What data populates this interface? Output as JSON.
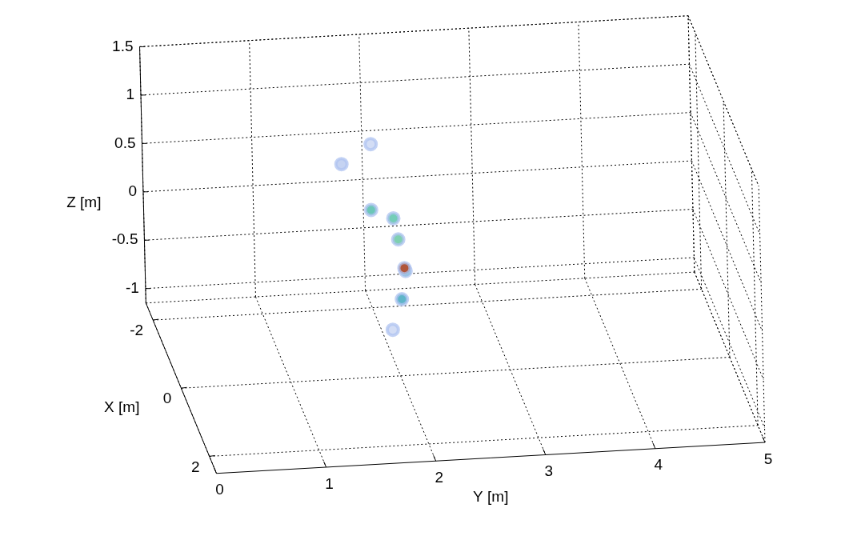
{
  "chart_data": {
    "type": "scatter3d",
    "x_label": "X [m]",
    "y_label": "Y [m]",
    "z_label": "Z [m]",
    "x": [
      -1.5,
      -1.5,
      -1.5,
      -1.5,
      -1.5,
      -1.5,
      -1.5,
      -1,
      -1.5
    ],
    "y": [
      1.69,
      1.96,
      1.95,
      2.15,
      2.19,
      2.25,
      2.21,
      2.06,
      2.24
    ],
    "z": [
      0.53,
      0.72,
      0.04,
      -0.06,
      -0.28,
      -0.61,
      -0.9,
      -1.03,
      -0.58
    ],
    "colors": [
      "#c5d3f2",
      "#d3ddf5",
      "#6cc7b8",
      "#74cdb8",
      "#7fd0b0",
      "#5fc2bf",
      "#5fb5c9",
      "#d3ddf5",
      "#b0553b"
    ],
    "xlim": [
      -2.5,
      2.5
    ],
    "xticks": [
      -2,
      0,
      2
    ],
    "ylim": [
      0,
      5
    ],
    "yticks": [
      0,
      1,
      2,
      3,
      4,
      5
    ],
    "zlim": [
      -1.15,
      1.5
    ],
    "zticks": [
      -1,
      -0.5,
      0,
      0.5,
      1,
      1.5
    ],
    "grid": true,
    "marker": "circle"
  }
}
